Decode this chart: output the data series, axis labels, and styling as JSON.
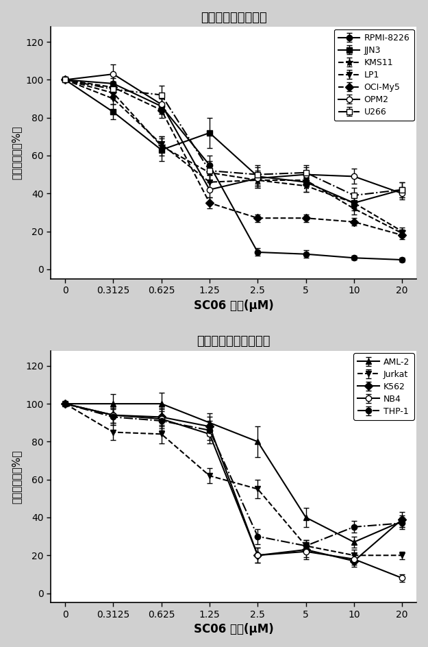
{
  "x": [
    0,
    0.3125,
    0.625,
    1.25,
    2.5,
    5,
    10,
    20
  ],
  "title1": "多发性骨髓瘤细胞株",
  "title2": "白血病和淋巴瘤细胞株",
  "xlabel": "SC06 浓度(μM)",
  "ylabel": "细胞存活率（%）",
  "top_series": {
    "RPMI-8226": {
      "y": [
        100,
        98,
        86,
        55,
        9,
        8,
        6,
        5
      ],
      "yerr": [
        0,
        3,
        4,
        5,
        2,
        2,
        1,
        1
      ],
      "marker": "o",
      "linestyle": "-",
      "fillstyle": "full"
    },
    "JJN3": {
      "y": [
        100,
        83,
        63,
        72,
        49,
        46,
        35,
        42
      ],
      "yerr": [
        0,
        4,
        6,
        8,
        5,
        5,
        4,
        4
      ],
      "marker": "s",
      "linestyle": "-",
      "fillstyle": "full"
    },
    "KMS11": {
      "y": [
        100,
        93,
        65,
        51,
        47,
        44,
        35,
        20
      ],
      "yerr": [
        0,
        3,
        5,
        4,
        4,
        3,
        3,
        2
      ],
      "marker": "*",
      "linestyle": "--",
      "fillstyle": "full"
    },
    "LP1": {
      "y": [
        100,
        90,
        66,
        46,
        47,
        47,
        32,
        19
      ],
      "yerr": [
        0,
        3,
        4,
        4,
        4,
        3,
        3,
        2
      ],
      "marker": "v",
      "linestyle": "--",
      "fillstyle": "full"
    },
    "OCI-My5": {
      "y": [
        100,
        96,
        84,
        35,
        27,
        27,
        25,
        18
      ],
      "yerr": [
        0,
        3,
        4,
        3,
        2,
        2,
        2,
        2
      ],
      "marker": "D",
      "linestyle": "--",
      "fillstyle": "full"
    },
    "OPM2": {
      "y": [
        100,
        103,
        87,
        42,
        48,
        50,
        49,
        40
      ],
      "yerr": [
        0,
        5,
        5,
        4,
        4,
        4,
        4,
        3
      ],
      "marker": "o",
      "linestyle": "-",
      "fillstyle": "none"
    },
    "U266": {
      "y": [
        100,
        95,
        92,
        52,
        50,
        51,
        39,
        42
      ],
      "yerr": [
        0,
        4,
        5,
        5,
        5,
        4,
        4,
        4
      ],
      "marker": "s",
      "linestyle": "-.",
      "fillstyle": "none"
    }
  },
  "bottom_series": {
    "AML-2": {
      "y": [
        100,
        100,
        100,
        90,
        80,
        40,
        27,
        38
      ],
      "yerr": [
        0,
        5,
        6,
        5,
        8,
        5,
        3,
        3
      ],
      "marker": "^",
      "linestyle": "-",
      "fillstyle": "full"
    },
    "Jurkat": {
      "y": [
        100,
        85,
        84,
        62,
        55,
        25,
        20,
        20
      ],
      "yerr": [
        0,
        4,
        5,
        4,
        5,
        3,
        3,
        2
      ],
      "marker": "v",
      "linestyle": "--",
      "fillstyle": "full"
    },
    "K562": {
      "y": [
        100,
        94,
        93,
        88,
        20,
        23,
        17,
        39
      ],
      "yerr": [
        0,
        4,
        5,
        5,
        4,
        4,
        3,
        4
      ],
      "marker": "D",
      "linestyle": "-",
      "fillstyle": "full"
    },
    "NB4": {
      "y": [
        100,
        94,
        92,
        84,
        20,
        22,
        18,
        8
      ],
      "yerr": [
        0,
        4,
        5,
        5,
        4,
        4,
        3,
        2
      ],
      "marker": "o",
      "linestyle": "-",
      "fillstyle": "none"
    },
    "THP-1": {
      "y": [
        100,
        93,
        91,
        86,
        30,
        25,
        35,
        37
      ],
      "yerr": [
        0,
        4,
        5,
        5,
        4,
        3,
        3,
        3
      ],
      "marker": "o",
      "linestyle": "-.",
      "fillstyle": "full"
    }
  },
  "ylim": [
    -5,
    128
  ],
  "yticks": [
    0,
    20,
    40,
    60,
    80,
    100,
    120
  ],
  "xtick_labels": [
    "0",
    "0.3125",
    "0.625",
    "1.25",
    "2.5",
    "5",
    "10",
    "20"
  ],
  "bg_color": "#d0d0d0",
  "plot_bg": "white"
}
